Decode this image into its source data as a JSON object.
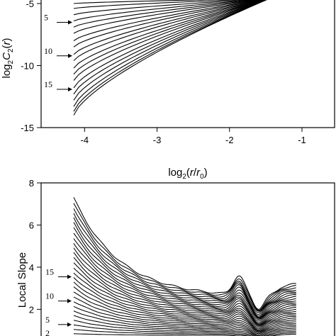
{
  "chart_data": [
    {
      "type": "line",
      "xlabel": "log2(r/r0)",
      "ylabel": "log2C2(r)",
      "xlim": [
        -4.6,
        -0.55
      ],
      "ylim": [
        -15,
        -4.6
      ],
      "xticks": [
        -4,
        -3,
        -2,
        -1
      ],
      "yticks": [
        -15,
        -10,
        -5
      ],
      "grid": false,
      "x_start": -4.15,
      "x_end": -1.45,
      "curve_count": 20,
      "curve_start_values": [
        -4.6,
        -5.0,
        -5.4,
        -5.9,
        -6.4,
        -6.9,
        -7.4,
        -8.0,
        -8.5,
        -9.1,
        -9.6,
        -10.2,
        -10.7,
        -11.2,
        -11.8,
        -12.3,
        -12.8,
        -13.3,
        -13.7,
        -14.0
      ],
      "curve_end_value": -4.6,
      "annotations": [
        {
          "label": "5",
          "curve": 5
        },
        {
          "label": "10",
          "curve": 10
        },
        {
          "label": "15",
          "curve": 15
        }
      ]
    },
    {
      "type": "line",
      "xlabel": "",
      "ylabel": "Local Slope",
      "xlim": [
        -4.6,
        -0.55
      ],
      "ylim": [
        0.6,
        8
      ],
      "yticks": [
        2,
        4,
        6,
        8
      ],
      "grid": false,
      "x_start": -4.15,
      "x_end": -1.08,
      "curve_count": 30,
      "top_curve_start": 7.3,
      "annotations": [
        {
          "label": "2",
          "curve": 2
        },
        {
          "label": "5",
          "curve": 5
        },
        {
          "label": "10",
          "curve": 10
        },
        {
          "label": "15",
          "curve": 15
        }
      ]
    }
  ]
}
